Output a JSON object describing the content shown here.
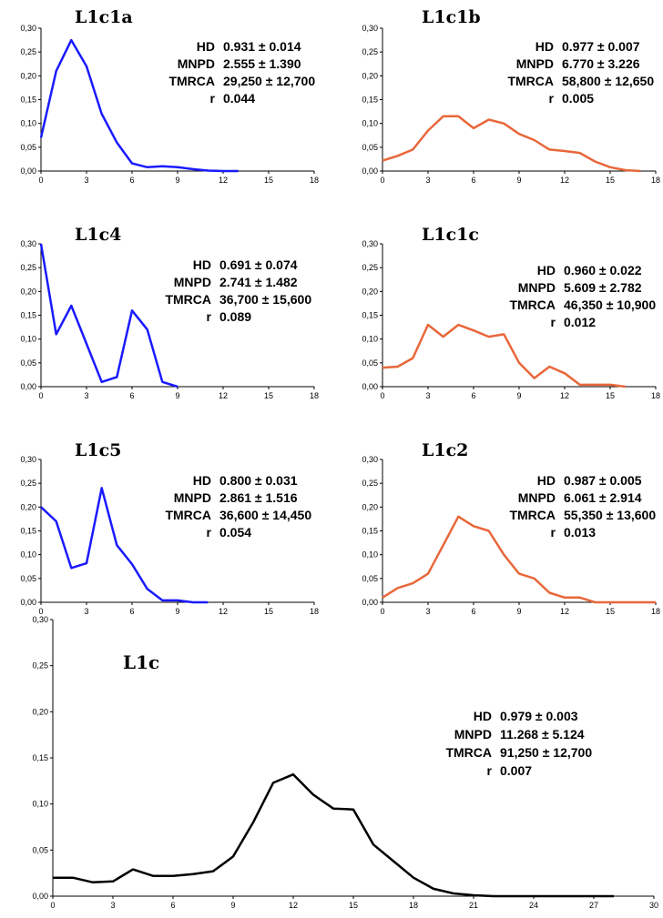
{
  "chart_data": [
    {
      "type": "line",
      "title": "L1c1a",
      "color": "#1a1aff",
      "x": [
        0,
        1,
        2,
        3,
        4,
        5,
        6,
        7,
        8,
        9,
        10,
        11,
        12,
        13
      ],
      "values": [
        0.07,
        0.21,
        0.275,
        0.22,
        0.12,
        0.06,
        0.016,
        0.008,
        0.01,
        0.008,
        0.004,
        0.001,
        0.0,
        0.0
      ],
      "xlim": [
        0,
        18
      ],
      "ylim": [
        0,
        0.3
      ],
      "xticks": [
        "0",
        "3",
        "6",
        "9",
        "12",
        "15",
        "18"
      ],
      "yticks": [
        "0,00",
        "0,05",
        "0,10",
        "0,15",
        "0,20",
        "0,25",
        "0,30"
      ],
      "stats": [
        {
          "label": "HD",
          "value": "0.931 ± 0.014"
        },
        {
          "label": "MNPD",
          "value": "2.555 ± 1.390"
        },
        {
          "label": "TMRCA",
          "value": "29,250 ± 12,700"
        },
        {
          "label": "r",
          "value": "0.044"
        }
      ]
    },
    {
      "type": "line",
      "title": "L1c1b",
      "color": "#e8673a",
      "x": [
        0,
        1,
        2,
        3,
        4,
        5,
        6,
        7,
        8,
        9,
        10,
        11,
        12,
        13,
        14,
        15,
        16,
        17
      ],
      "values": [
        0.022,
        0.032,
        0.045,
        0.085,
        0.115,
        0.115,
        0.09,
        0.108,
        0.1,
        0.078,
        0.065,
        0.045,
        0.042,
        0.038,
        0.02,
        0.008,
        0.002,
        0.0
      ],
      "xlim": [
        0,
        18
      ],
      "ylim": [
        0,
        0.3
      ],
      "xticks": [
        "0",
        "3",
        "6",
        "9",
        "12",
        "15",
        "18"
      ],
      "yticks": [
        "0,00",
        "0,05",
        "0,10",
        "0,15",
        "0,20",
        "0,25",
        "0,30"
      ],
      "stats": [
        {
          "label": "HD",
          "value": "0.977 ± 0.007"
        },
        {
          "label": "MNPD",
          "value": "6.770 ± 3.226"
        },
        {
          "label": "TMRCA",
          "value": "58,800 ± 12,650"
        },
        {
          "label": "r",
          "value": "0.005"
        }
      ]
    },
    {
      "type": "line",
      "title": "L1c4",
      "color": "#1a1aff",
      "x": [
        0,
        1,
        2,
        3,
        4,
        5,
        6,
        7,
        8,
        9
      ],
      "values": [
        0.3,
        0.11,
        0.17,
        0.09,
        0.01,
        0.02,
        0.16,
        0.12,
        0.01,
        0.0
      ],
      "xlim": [
        0,
        18
      ],
      "ylim": [
        0,
        0.3
      ],
      "xticks": [
        "0",
        "3",
        "6",
        "9",
        "12",
        "15",
        "18"
      ],
      "yticks": [
        "0,00",
        "0,05",
        "0,10",
        "0,15",
        "0,20",
        "0,25",
        "0,30"
      ],
      "stats": [
        {
          "label": "HD",
          "value": "0.691 ± 0.074"
        },
        {
          "label": "MNPD",
          "value": "2.741 ± 1.482"
        },
        {
          "label": "TMRCA",
          "value": "36,700 ± 15,600"
        },
        {
          "label": "r",
          "value": "0.089"
        }
      ]
    },
    {
      "type": "line",
      "title": "L1c1c",
      "color": "#e8673a",
      "x": [
        0,
        1,
        2,
        3,
        4,
        5,
        6,
        7,
        8,
        9,
        10,
        11,
        12,
        13,
        14,
        15,
        16
      ],
      "values": [
        0.04,
        0.042,
        0.06,
        0.13,
        0.105,
        0.13,
        0.118,
        0.105,
        0.11,
        0.05,
        0.018,
        0.042,
        0.028,
        0.004,
        0.004,
        0.004,
        0.0
      ],
      "xlim": [
        0,
        18
      ],
      "ylim": [
        0,
        0.3
      ],
      "xticks": [
        "0",
        "3",
        "6",
        "9",
        "12",
        "15",
        "18"
      ],
      "yticks": [
        "0,00",
        "0,05",
        "0,10",
        "0,15",
        "0,20",
        "0,25",
        "0,30"
      ],
      "stats": [
        {
          "label": "HD",
          "value": "0.960 ± 0.022"
        },
        {
          "label": "MNPD",
          "value": "5.609 ± 2.782"
        },
        {
          "label": "TMRCA",
          "value": "46,350 ± 10,900"
        },
        {
          "label": "r",
          "value": "0.012"
        }
      ]
    },
    {
      "type": "line",
      "title": "L1c5",
      "color": "#1a1aff",
      "x": [
        0,
        1,
        2,
        3,
        4,
        5,
        6,
        7,
        8,
        9,
        10,
        11
      ],
      "values": [
        0.2,
        0.17,
        0.072,
        0.082,
        0.24,
        0.12,
        0.08,
        0.028,
        0.004,
        0.004,
        0.0,
        0.0
      ],
      "xlim": [
        0,
        18
      ],
      "ylim": [
        0,
        0.3
      ],
      "xticks": [
        "0",
        "3",
        "6",
        "9",
        "12",
        "15",
        "18"
      ],
      "yticks": [
        "0,00",
        "0,05",
        "0,10",
        "0,15",
        "0,20",
        "0,25",
        "0,30"
      ],
      "stats": [
        {
          "label": "HD",
          "value": "0.800 ± 0.031"
        },
        {
          "label": "MNPD",
          "value": "2.861 ± 1.516"
        },
        {
          "label": "TMRCA",
          "value": "36,600 ± 14,450"
        },
        {
          "label": "r",
          "value": "0.054"
        }
      ]
    },
    {
      "type": "line",
      "title": "L1c2",
      "color": "#e8673a",
      "x": [
        0,
        1,
        2,
        3,
        4,
        5,
        6,
        7,
        8,
        9,
        10,
        11,
        12,
        13,
        14,
        15,
        16,
        17,
        18
      ],
      "values": [
        0.01,
        0.03,
        0.04,
        0.06,
        0.12,
        0.18,
        0.16,
        0.15,
        0.1,
        0.06,
        0.05,
        0.02,
        0.01,
        0.01,
        0.0,
        0.0,
        0.0,
        0.0,
        0.0
      ],
      "xlim": [
        0,
        18
      ],
      "ylim": [
        0,
        0.3
      ],
      "xticks": [
        "0",
        "3",
        "6",
        "9",
        "12",
        "15",
        "18"
      ],
      "yticks": [
        "0,00",
        "0,05",
        "0,10",
        "0,15",
        "0,20",
        "0,25",
        "0,30"
      ],
      "stats": [
        {
          "label": "HD",
          "value": "0.987 ± 0.005"
        },
        {
          "label": "MNPD",
          "value": "6.061 ± 2.914"
        },
        {
          "label": "TMRCA",
          "value": "55,350 ± 13,600"
        },
        {
          "label": "r",
          "value": "0.013"
        }
      ]
    },
    {
      "type": "line",
      "title": "L1c",
      "color": "#000000",
      "x": [
        0,
        1,
        2,
        3,
        4,
        5,
        6,
        7,
        8,
        9,
        10,
        11,
        12,
        13,
        14,
        15,
        16,
        17,
        18,
        19,
        20,
        21,
        22,
        23,
        24,
        25,
        26,
        27,
        28
      ],
      "values": [
        0.02,
        0.02,
        0.015,
        0.016,
        0.029,
        0.022,
        0.022,
        0.024,
        0.027,
        0.043,
        0.08,
        0.123,
        0.132,
        0.11,
        0.095,
        0.094,
        0.056,
        0.038,
        0.02,
        0.008,
        0.003,
        0.001,
        0.0,
        0.0,
        0.0,
        0.0,
        0.0,
        0.0,
        0.0
      ],
      "xlim": [
        0,
        30
      ],
      "ylim": [
        0,
        0.3
      ],
      "xticks": [
        "0",
        "3",
        "6",
        "9",
        "12",
        "15",
        "18",
        "21",
        "24",
        "27",
        "30"
      ],
      "yticks": [
        "0,00",
        "0,05",
        "0,10",
        "0,15",
        "0,20",
        "0,25",
        "0,30"
      ],
      "stats": [
        {
          "label": "HD",
          "value": "0.979 ± 0.003"
        },
        {
          "label": "MNPD",
          "value": "11.268 ± 5.124"
        },
        {
          "label": "TMRCA",
          "value": "91,250 ± 12,700"
        },
        {
          "label": "r",
          "value": "0.007"
        }
      ]
    }
  ]
}
